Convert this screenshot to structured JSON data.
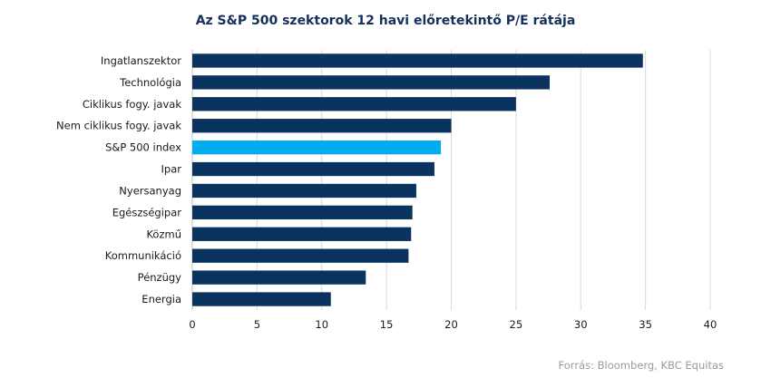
{
  "chart_data": {
    "type": "bar",
    "orientation": "horizontal",
    "title": "Az S&P 500 szektorok 12 havi előretekintő P/E rátája",
    "categories": [
      "Ingatlanszektor",
      "Technológia",
      "Ciklikus fogy. javak",
      "Nem ciklikus fogy. javak",
      "S&P 500 index",
      "Ipar",
      "Nyersanyag",
      "Egészségipar",
      "Közmű",
      "Kommunikáció",
      "Pénzügy",
      "Energia"
    ],
    "values": [
      34.8,
      27.6,
      25.0,
      20.0,
      19.2,
      18.7,
      17.3,
      17.0,
      16.9,
      16.7,
      13.4,
      10.7
    ],
    "highlight_category": "S&P 500 index",
    "xlim": [
      0,
      40
    ],
    "xticks": [
      0,
      5,
      10,
      15,
      20,
      25,
      30,
      35,
      40
    ],
    "grid": "vertical",
    "xlabel": "",
    "ylabel": "",
    "colors": {
      "bar": "#0b3360",
      "highlight": "#00aeef",
      "grid": "#d9d9d9"
    }
  },
  "source": "Forrás: Bloomberg, KBC Equitas"
}
